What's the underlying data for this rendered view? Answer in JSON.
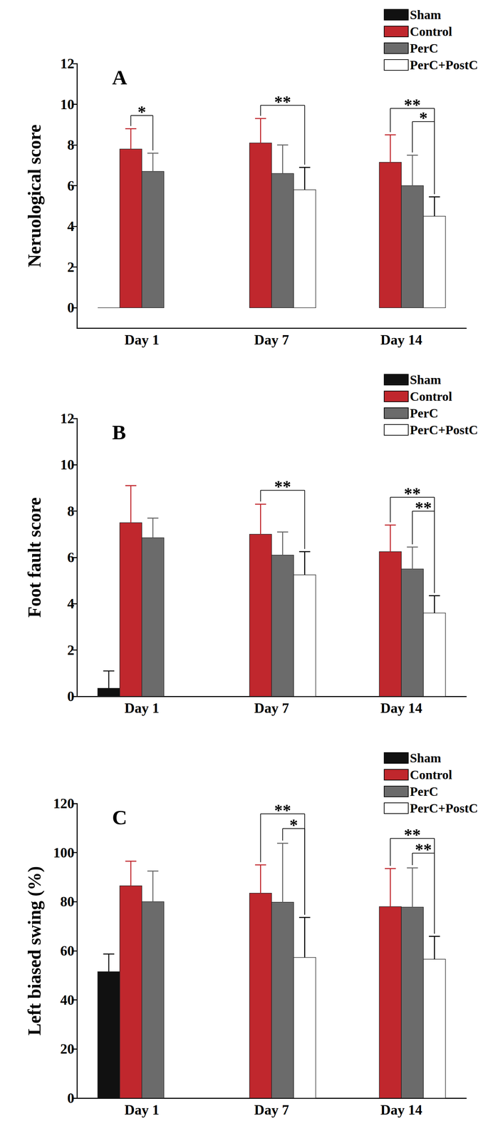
{
  "chart_data": [
    {
      "type": "bar",
      "title": "A",
      "y_label": "Neruological score",
      "categories": [
        "Day 1",
        "Day 7",
        "Day 14"
      ],
      "series": [
        {
          "name": "Sham",
          "color": "#111111",
          "values": [
            0,
            null,
            null
          ],
          "errors": [
            0,
            null,
            null
          ]
        },
        {
          "name": "Control",
          "color": "#c0272d",
          "values": [
            7.8,
            8.1,
            7.15
          ],
          "errors": [
            1.0,
            1.2,
            1.35
          ]
        },
        {
          "name": "PerC",
          "color": "#6b6b6b",
          "values": [
            6.7,
            6.6,
            6.0
          ],
          "errors": [
            0.9,
            1.4,
            1.5
          ]
        },
        {
          "name": "PerC+PostC",
          "color": "#ffffff",
          "values": [
            null,
            5.8,
            4.5
          ],
          "errors": [
            null,
            1.1,
            0.95
          ]
        }
      ],
      "annotations": [
        {
          "category": "Day 1",
          "from": "Control",
          "to": "PerC",
          "text": "*"
        },
        {
          "category": "Day 7",
          "from": "Control",
          "to": "PerC+PostC",
          "text": "**"
        },
        {
          "category": "Day 14",
          "from": "Control",
          "to": "PerC+PostC",
          "text": "**"
        },
        {
          "category": "Day 14",
          "from": "PerC",
          "to": "PerC+PostC",
          "text": "*"
        }
      ],
      "ylim": [
        -1,
        12
      ],
      "yticks": [
        0,
        2,
        4,
        6,
        8,
        10,
        12
      ],
      "grid": false,
      "legend": "upper right"
    },
    {
      "type": "bar",
      "title": "B",
      "y_label": "Foot fault score",
      "categories": [
        "Day 1",
        "Day 7",
        "Day 14"
      ],
      "series": [
        {
          "name": "Sham",
          "color": "#111111",
          "values": [
            0.35,
            null,
            null
          ],
          "errors": [
            0.75,
            null,
            null
          ]
        },
        {
          "name": "Control",
          "color": "#c0272d",
          "values": [
            7.5,
            7.0,
            6.25
          ],
          "errors": [
            1.6,
            1.3,
            1.15
          ]
        },
        {
          "name": "PerC",
          "color": "#6b6b6b",
          "values": [
            6.85,
            6.1,
            5.5
          ],
          "errors": [
            0.85,
            1.0,
            0.95
          ]
        },
        {
          "name": "PerC+PostC",
          "color": "#ffffff",
          "values": [
            null,
            5.25,
            3.6
          ],
          "errors": [
            null,
            1.0,
            0.75
          ]
        }
      ],
      "annotations": [
        {
          "category": "Day 7",
          "from": "Control",
          "to": "PerC+PostC",
          "text": "**"
        },
        {
          "category": "Day 14",
          "from": "Control",
          "to": "PerC+PostC",
          "text": "**"
        },
        {
          "category": "Day 14",
          "from": "PerC",
          "to": "PerC+PostC",
          "text": "**"
        }
      ],
      "ylim": [
        0,
        12
      ],
      "yticks": [
        0,
        2,
        4,
        6,
        8,
        10,
        12
      ],
      "grid": false,
      "legend": "upper right"
    },
    {
      "type": "bar",
      "title": "C",
      "y_label": "Left biased swing (%)",
      "categories": [
        "Day 1",
        "Day 7",
        "Day 14"
      ],
      "series": [
        {
          "name": "Sham",
          "color": "#111111",
          "values": [
            51.5,
            null,
            null
          ],
          "errors": [
            7.2,
            null,
            null
          ]
        },
        {
          "name": "Control",
          "color": "#c0272d",
          "values": [
            86.5,
            83.5,
            78
          ],
          "errors": [
            10,
            11.5,
            15.5
          ]
        },
        {
          "name": "PerC",
          "color": "#6b6b6b",
          "values": [
            80,
            79.8,
            77.8
          ],
          "errors": [
            12.5,
            24,
            16
          ]
        },
        {
          "name": "PerC+PostC",
          "color": "#ffffff",
          "values": [
            null,
            57.3,
            56.6
          ],
          "errors": [
            null,
            16.3,
            9.3
          ]
        }
      ],
      "annotations": [
        {
          "category": "Day 7",
          "from": "Control",
          "to": "PerC+PostC",
          "text": "**"
        },
        {
          "category": "Day 7",
          "from": "PerC",
          "to": "PerC+PostC",
          "text": "*"
        },
        {
          "category": "Day 14",
          "from": "Control",
          "to": "PerC+PostC",
          "text": "**"
        },
        {
          "category": "Day 14",
          "from": "PerC",
          "to": "PerC+PostC",
          "text": "**"
        }
      ],
      "ylim": [
        0,
        120
      ],
      "yticks": [
        0,
        20,
        40,
        60,
        80,
        100,
        120
      ],
      "grid": false,
      "legend": "upper right"
    }
  ]
}
